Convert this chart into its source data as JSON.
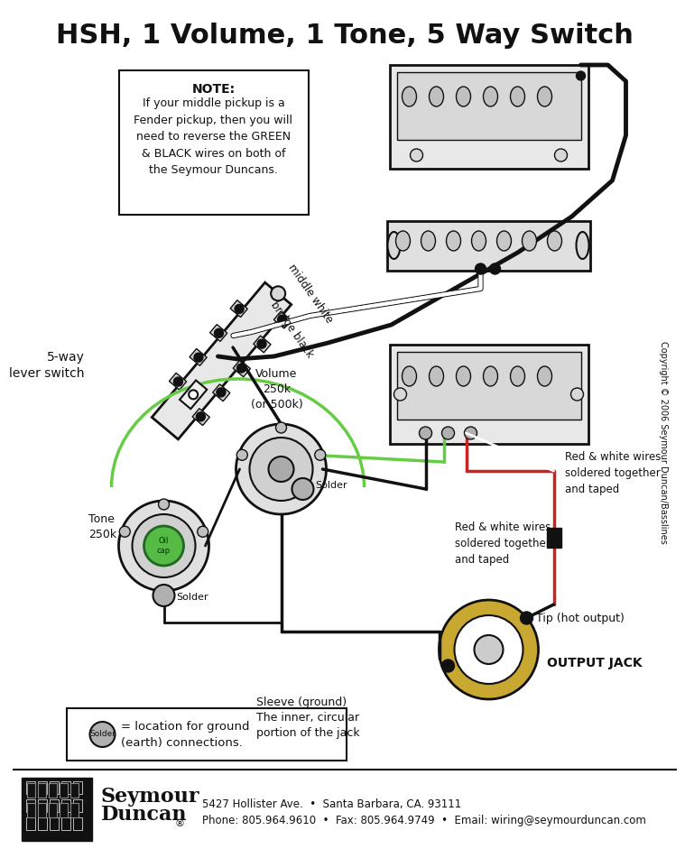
{
  "title": "HSH, 1 Volume, 1 Tone, 5 Way Switch",
  "title_fontsize": 22,
  "bg_color": "#ffffff",
  "note_title": "NOTE:",
  "note_body": "If your middle pickup is a\nFender pickup, then you will\nneed to reverse the GREEN\n& BLACK wires on both of\nthe Seymour Duncans.",
  "label_5way": "5-way\nlever switch",
  "label_volume": "Volume\n250k\n(or 500k)",
  "label_tone": "Tone\n250k",
  "label_bridge_black": "bridge black",
  "label_middle_white": "middle white",
  "label_red_white_top": "Red & white wires\nsoldered together\nand taped",
  "label_red_white_bot": "Red & white wires\nsoldered together\nand taped",
  "label_tip": "Tip (hot output)",
  "label_sleeve": "Sleeve (ground)\nThe inner, circular\nportion of the jack",
  "label_output": "OUTPUT JACK",
  "label_solder_vol": "Solder",
  "label_solder_tone": "Solder",
  "label_ground": "= location for ground\n(earth) connections.",
  "footer_line1": "5427 Hollister Ave.  •  Santa Barbara, CA. 93111",
  "footer_line2": "Phone: 805.964.9610  •  Fax: 805.964.9749  •  Email: wiring@seymourduncan.com",
  "copyright": "Copyright © 2006 Seymour Duncan/Basslines",
  "color_black": "#111111",
  "color_white": "#ffffff",
  "color_green": "#66cc44",
  "color_red": "#cc2222",
  "color_gray": "#aaaaaa",
  "color_light_gray": "#cccccc",
  "color_mid_gray": "#999999",
  "color_bg": "#ffffff",
  "color_switch_body": "#e0e0e0",
  "color_pickup_body": "#d8d8d8",
  "color_jack_gold": "#c8a830",
  "color_solder": "#b0b0b0",
  "color_cap_green": "#55bb44",
  "color_cap_label": "#226622"
}
